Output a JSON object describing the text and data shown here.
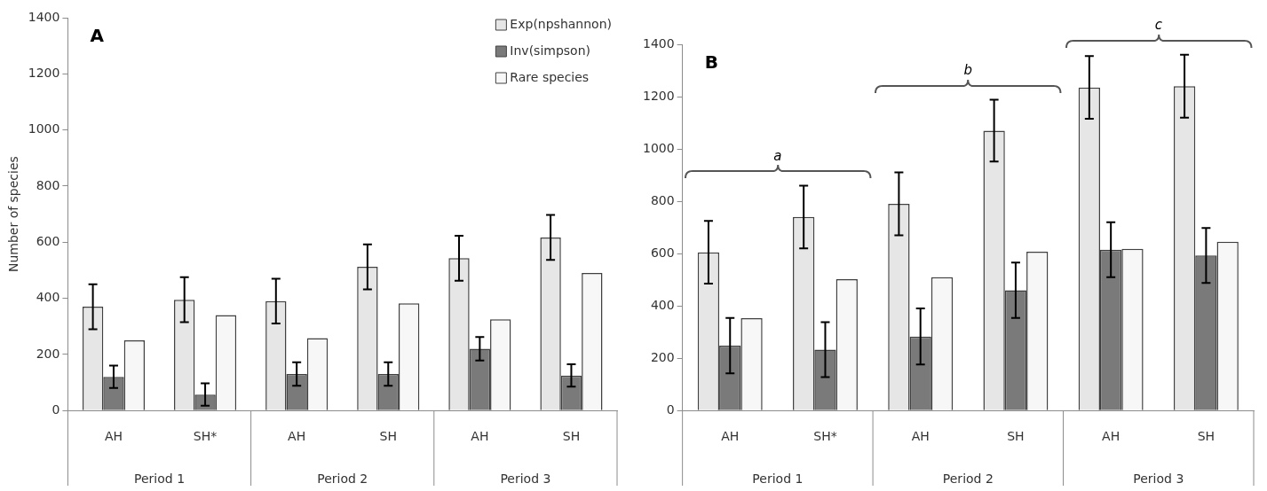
{
  "chart_data": [
    {
      "type": "bar",
      "title": "A",
      "ylabel": "Number of species",
      "categories": [
        "AH",
        "SH*",
        "AH",
        "SH",
        "AH",
        "SH"
      ],
      "annotations": [
        "Period 1",
        "Period 2",
        "Period 3"
      ],
      "ylim": [
        0,
        1400
      ],
      "yticks": [
        0,
        200,
        400,
        600,
        800,
        1000,
        1200,
        1400
      ],
      "grid": false,
      "legend": "top right",
      "series": [
        {
          "name": "Exp(npshannon)",
          "color": "#e6e6e6",
          "values": [
            370,
            395,
            390,
            512,
            543,
            617
          ],
          "errors": [
            80,
            80,
            80,
            80,
            80,
            80
          ]
        },
        {
          "name": "Inv(simpson)",
          "color": "#7a7a7a",
          "values": [
            120,
            57,
            130,
            130,
            220,
            125
          ],
          "errors": [
            40,
            40,
            42,
            42,
            42,
            40
          ]
        },
        {
          "name": "Rare species",
          "color": "#f7f7f7",
          "values": [
            250,
            340,
            258,
            382,
            325,
            490
          ]
        }
      ]
    },
    {
      "type": "bar",
      "title": "B",
      "categories": [
        "AH",
        "SH*",
        "AH",
        "SH",
        "AH",
        "SH"
      ],
      "annotations": [
        "Period 1",
        "Period 2",
        "Period 3",
        "a",
        "b",
        "c"
      ],
      "ylim": [
        0,
        1400
      ],
      "yticks": [
        0,
        200,
        400,
        600,
        800,
        1000,
        1200,
        1400
      ],
      "grid": false,
      "series": [
        {
          "color": "#e6e6e6",
          "values": [
            605,
            740,
            790,
            1070,
            1235,
            1240
          ],
          "errors": [
            120,
            120,
            120,
            118,
            120,
            120
          ]
        },
        {
          "color": "#7a7a7a",
          "values": [
            248,
            233,
            283,
            460,
            615,
            593
          ],
          "errors": [
            106,
            105,
            107,
            106,
            105,
            105
          ]
        },
        {
          "color": "#f7f7f7",
          "values": [
            353,
            502,
            510,
            607,
            618,
            645
          ]
        }
      ]
    }
  ]
}
